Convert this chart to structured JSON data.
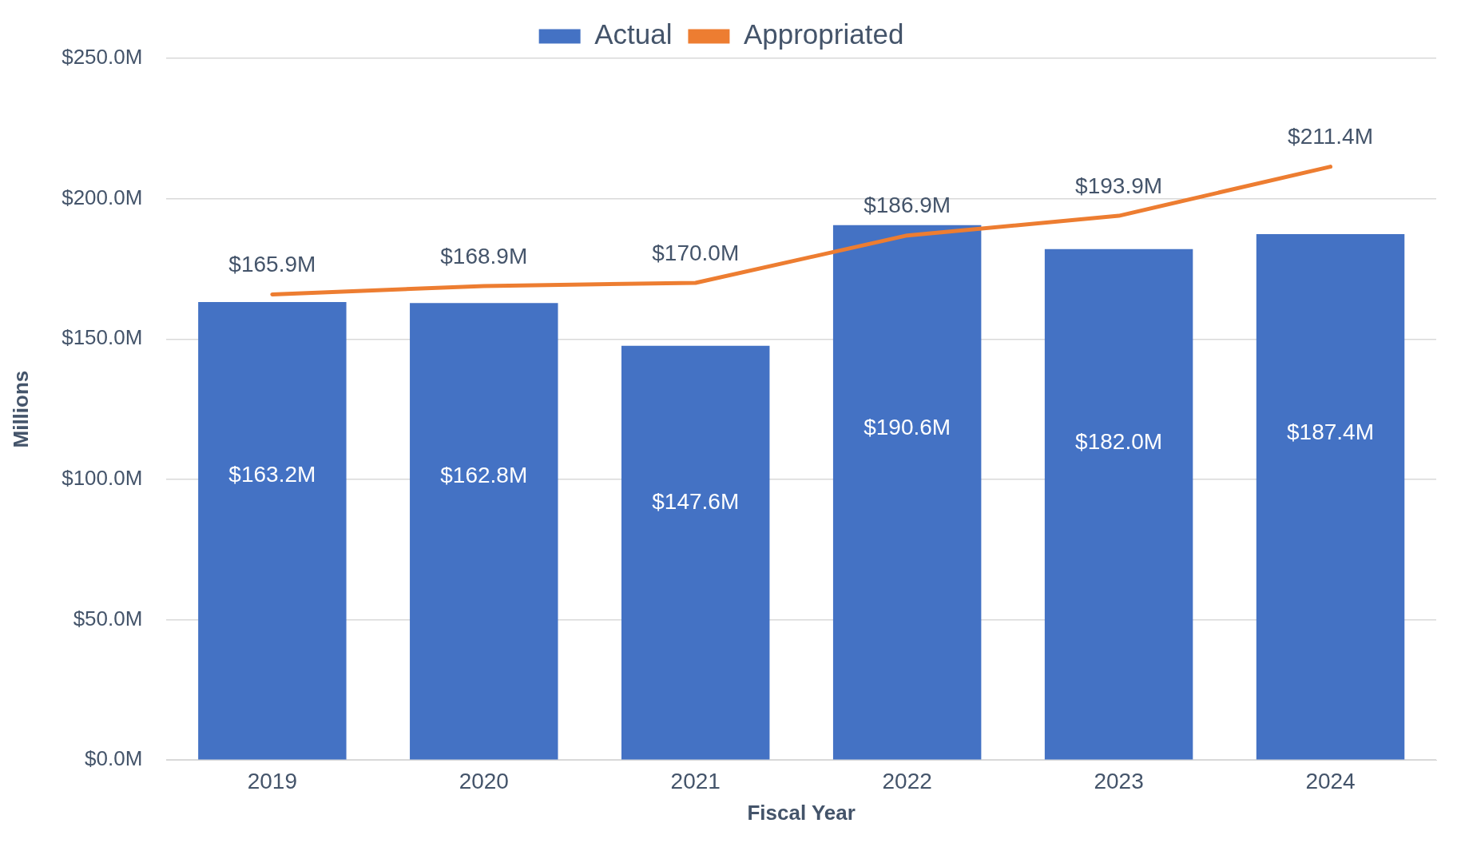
{
  "chart_data": {
    "type": "bar",
    "xlabel": "Fiscal Year",
    "ylabel": "Millions",
    "categories": [
      "2019",
      "2020",
      "2021",
      "2022",
      "2023",
      "2024"
    ],
    "series": [
      {
        "name": "Actual",
        "color": "#4472c4",
        "values": [
          163.2,
          162.8,
          147.6,
          190.6,
          182.0,
          187.4
        ],
        "value_labels": [
          "$163.2M",
          "$162.8M",
          "$147.6M",
          "$190.6M",
          "$182.0M",
          "$187.4M"
        ]
      },
      {
        "name": "Appropriated",
        "type": "line",
        "color": "#ed7d31",
        "values": [
          165.9,
          168.9,
          170.0,
          186.9,
          193.9,
          211.4
        ],
        "value_labels": [
          "$165.9M",
          "$168.9M",
          "$170.0M",
          "$186.9M",
          "$193.9M",
          "$211.4M"
        ]
      }
    ],
    "ylim": [
      0,
      250
    ],
    "yticks": [
      {
        "value": 0,
        "label": "$0.0M"
      },
      {
        "value": 50,
        "label": "$50.0M"
      },
      {
        "value": 100,
        "label": "$100.0M"
      },
      {
        "value": 150,
        "label": "$150.0M"
      },
      {
        "value": 200,
        "label": "$200.0M"
      },
      {
        "value": 250,
        "label": "$250.0M"
      }
    ],
    "grid": "y",
    "legend": "top",
    "marker": "none",
    "line_style": "solid"
  }
}
